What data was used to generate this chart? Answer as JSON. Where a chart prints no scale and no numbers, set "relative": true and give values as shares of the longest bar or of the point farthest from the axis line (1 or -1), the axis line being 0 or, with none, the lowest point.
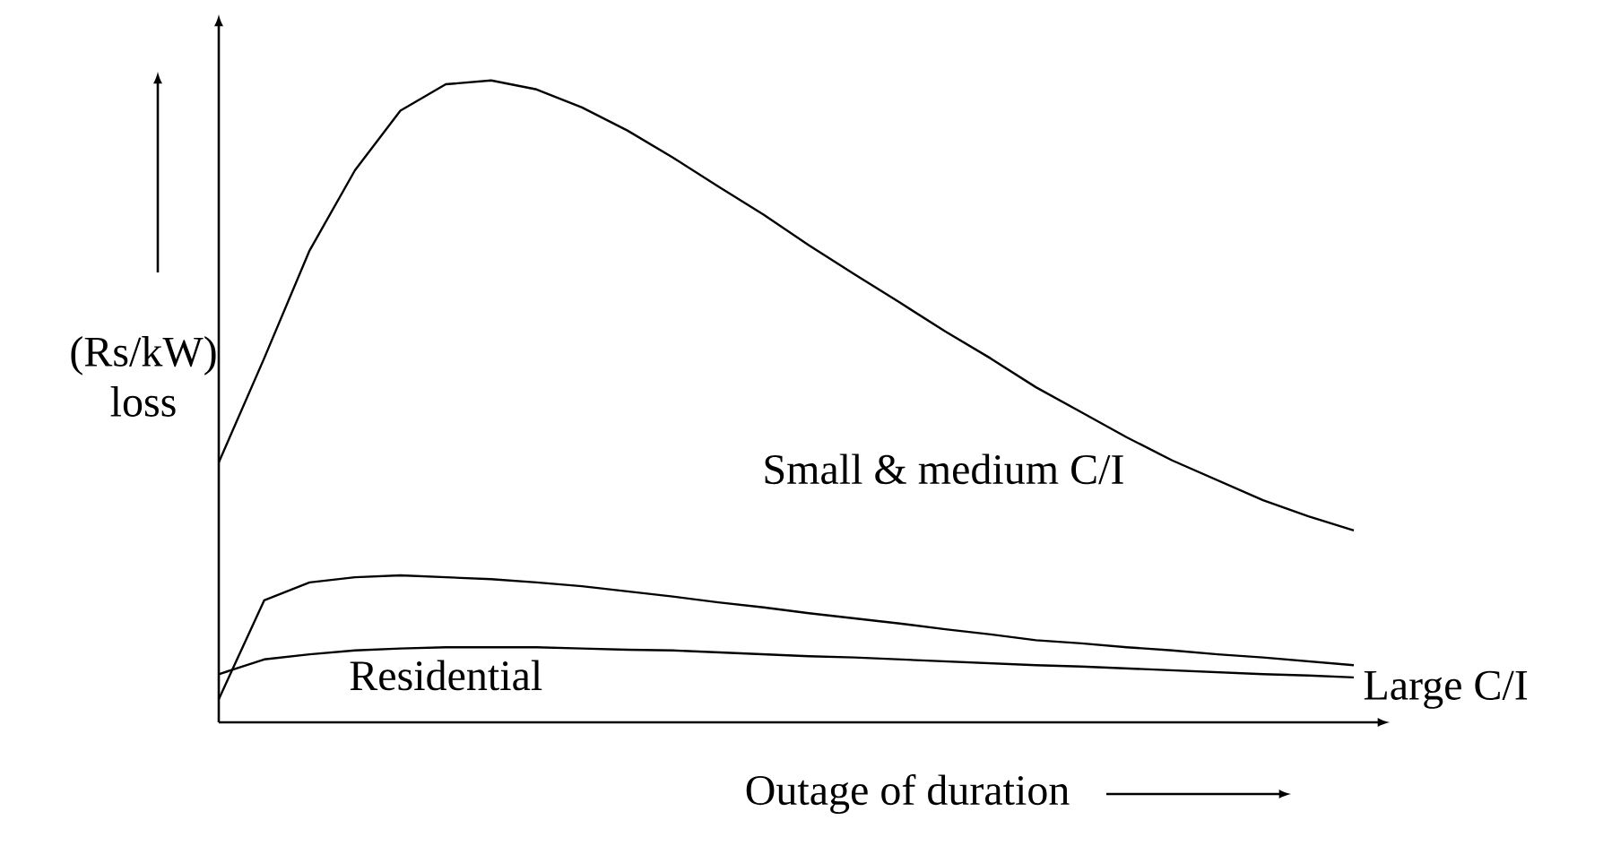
{
  "chart_data": {
    "type": "line",
    "relative": true,
    "xlabel": "Outage of duration",
    "ylabel": "(Rs/kW) loss",
    "line_style": "solid",
    "marker": "none",
    "categories": [
      null,
      null,
      null,
      null,
      null,
      null,
      null,
      null,
      null,
      null,
      null,
      null,
      null,
      null,
      null,
      null,
      null,
      null,
      null,
      null,
      null,
      null,
      null,
      null,
      null,
      null
    ],
    "series": [
      {
        "name": "Small & medium C/I",
        "color": "#000000",
        "values": [
          0.405,
          0.567,
          0.735,
          0.86,
          0.953,
          0.994,
          1,
          0.986,
          0.958,
          0.922,
          0.88,
          0.835,
          0.791,
          0.743,
          0.698,
          0.654,
          0.609,
          0.567,
          0.522,
          0.483,
          0.444,
          0.408,
          0.377,
          0.346,
          0.321,
          0.299
        ]
      },
      {
        "name": "Large C/I",
        "color": "#000000",
        "values": [
          0.036,
          0.19,
          0.218,
          0.226,
          0.229,
          0.226,
          0.223,
          0.218,
          0.212,
          0.204,
          0.196,
          0.187,
          0.179,
          0.17,
          0.162,
          0.154,
          0.145,
          0.137,
          0.128,
          0.123,
          0.117,
          0.112,
          0.106,
          0.101,
          0.095,
          0.089
        ]
      },
      {
        "name": "Residential",
        "color": "#000000",
        "values": [
          0.075,
          0.098,
          0.106,
          0.112,
          0.115,
          0.117,
          0.117,
          0.117,
          0.115,
          0.113,
          0.112,
          0.109,
          0.106,
          0.103,
          0.101,
          0.098,
          0.095,
          0.092,
          0.089,
          0.087,
          0.084,
          0.081,
          0.078,
          0.075,
          0.073,
          0.07
        ]
      }
    ]
  }
}
